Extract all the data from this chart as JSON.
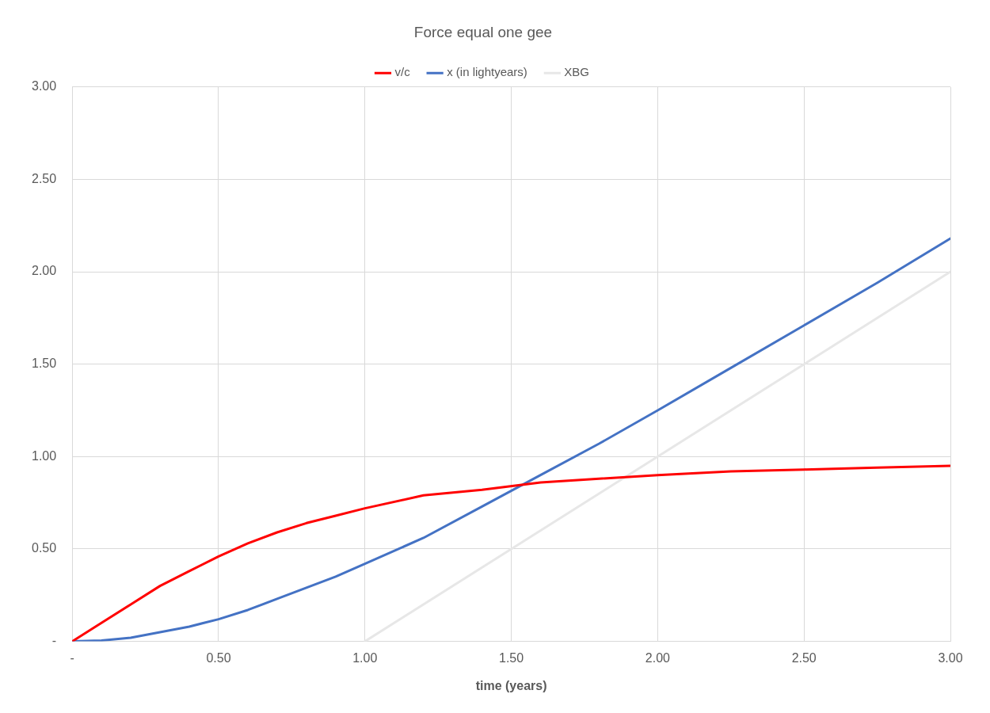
{
  "chart_data": {
    "type": "line",
    "title": "Force equal one gee",
    "xlabel": "time (years)",
    "x": [
      0,
      0.1,
      0.2,
      0.3,
      0.4,
      0.5,
      0.6,
      0.7,
      0.8,
      0.9,
      1.0,
      1.2,
      1.4,
      1.6,
      1.8,
      2.0,
      2.25,
      2.5,
      2.75,
      3.0
    ],
    "series": [
      {
        "name": "v/c",
        "color": "#ff0000",
        "values": [
          0,
          0.1,
          0.2,
          0.3,
          0.38,
          0.46,
          0.53,
          0.59,
          0.64,
          0.68,
          0.72,
          0.79,
          0.82,
          0.86,
          0.88,
          0.9,
          0.92,
          0.93,
          0.94,
          0.95
        ]
      },
      {
        "name": "x (in lightyears)",
        "color": "#4472c4",
        "values": [
          0,
          0.005,
          0.02,
          0.05,
          0.08,
          0.12,
          0.17,
          0.23,
          0.29,
          0.35,
          0.42,
          0.56,
          0.73,
          0.9,
          1.07,
          1.25,
          1.48,
          1.71,
          1.94,
          2.18
        ]
      },
      {
        "name": "XBG",
        "color": "#e7e7e7",
        "x": [
          1,
          3
        ],
        "values": [
          0,
          2
        ]
      }
    ],
    "xlim": [
      0,
      3
    ],
    "xticks": [
      {
        "value": 0,
        "label": "-"
      },
      {
        "value": 0.5,
        "label": "0.50"
      },
      {
        "value": 1,
        "label": "1.00"
      },
      {
        "value": 1.5,
        "label": "1.50"
      },
      {
        "value": 2,
        "label": "2.00"
      },
      {
        "value": 2.5,
        "label": "2.50"
      },
      {
        "value": 3,
        "label": "3.00"
      }
    ],
    "ylim": [
      0,
      3
    ],
    "yticks": [
      {
        "value": 0,
        "label": "-"
      },
      {
        "value": 0.5,
        "label": "0.50"
      },
      {
        "value": 1,
        "label": "1.00"
      },
      {
        "value": 1.5,
        "label": "1.50"
      },
      {
        "value": 2,
        "label": "2.00"
      },
      {
        "value": 2.5,
        "label": "2.50"
      },
      {
        "value": 3,
        "label": "3.00"
      }
    ],
    "grid": true,
    "legend": "top",
    "marker": "none",
    "line_style": "solid"
  }
}
